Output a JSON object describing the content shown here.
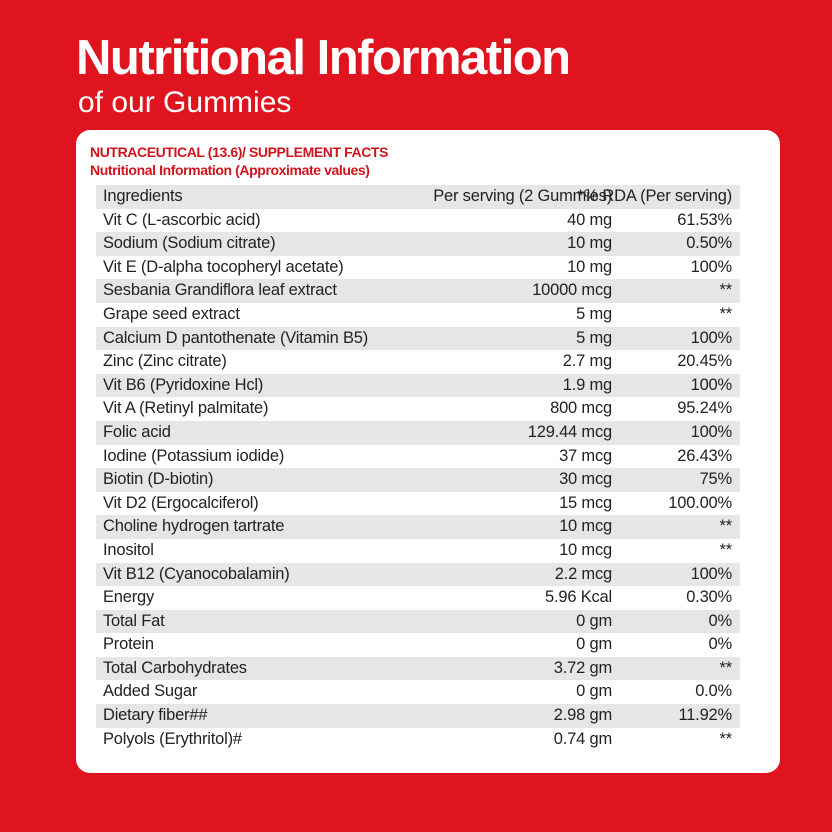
{
  "header": {
    "title": "Nutritional Information",
    "subtitle": "of our Gummies"
  },
  "card": {
    "heading": [
      "NUTRACEUTICAL (13.6)/ SUPPLEMENT FACTS",
      "Nutritional Information (Approximate values)"
    ]
  },
  "table": {
    "columns": [
      "Ingredients",
      "Per serving (2 Gummies)",
      "*% RDA (Per serving)"
    ],
    "rows": [
      [
        "Vit C (L-ascorbic acid)",
        "40 mg",
        "61.53%"
      ],
      [
        "Sodium (Sodium citrate)",
        "10 mg",
        "0.50%"
      ],
      [
        "Vit E (D-alpha tocopheryl acetate)",
        "10 mg",
        "100%"
      ],
      [
        "Sesbania Grandiflora leaf extract",
        "10000 mcg",
        "**"
      ],
      [
        "Grape seed extract",
        "5 mg",
        "**"
      ],
      [
        "Calcium D pantothenate (Vitamin B5)",
        "5 mg",
        "100%"
      ],
      [
        "Zinc (Zinc citrate)",
        "2.7 mg",
        "20.45%"
      ],
      [
        "Vit B6 (Pyridoxine Hcl)",
        "1.9 mg",
        "100%"
      ],
      [
        "Vit A (Retinyl palmitate)",
        "800 mcg",
        "95.24%"
      ],
      [
        "Folic acid",
        "129.44 mcg",
        "100%"
      ],
      [
        "Iodine (Potassium iodide)",
        "37 mcg",
        "26.43%"
      ],
      [
        "Biotin (D-biotin)",
        "30 mcg",
        "75%"
      ],
      [
        "Vit D2 (Ergocalciferol)",
        "15 mcg",
        "100.00%"
      ],
      [
        "Choline hydrogen tartrate",
        "10 mcg",
        "**"
      ],
      [
        "Inositol",
        "10 mcg",
        "**"
      ],
      [
        "Vit B12 (Cyanocobalamin)",
        "2.2 mcg",
        "100%"
      ],
      [
        "Energy",
        "5.96 Kcal",
        "0.30%"
      ],
      [
        "Total Fat",
        "0 gm",
        "0%"
      ],
      [
        "Protein",
        "0 gm",
        "0%"
      ],
      [
        "Total Carbohydrates",
        "3.72 gm",
        "**"
      ],
      [
        "Added Sugar",
        "0 gm",
        "0.0%"
      ],
      [
        "Dietary fiber##",
        "2.98 gm",
        "11.92%"
      ],
      [
        "Polyols (Erythritol)#",
        "0.74 gm",
        "**"
      ]
    ]
  }
}
